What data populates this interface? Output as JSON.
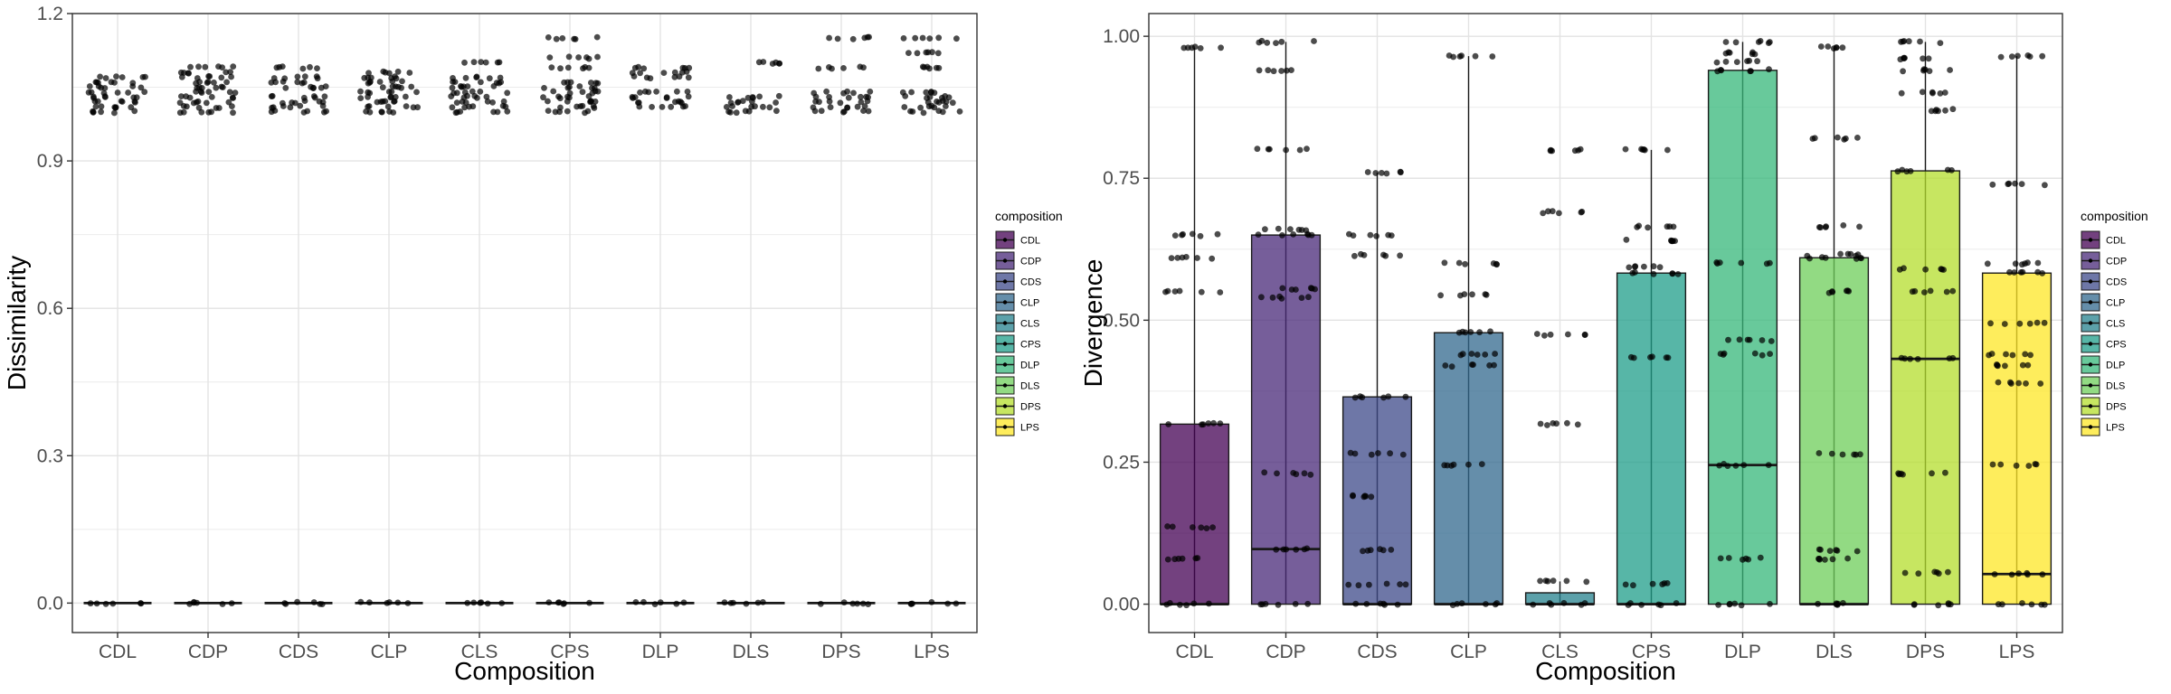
{
  "chart_data": [
    {
      "type": "box",
      "title": "",
      "xlabel": "Composition",
      "ylabel": "Dissimilarity",
      "ylim": [
        -0.06,
        1.2
      ],
      "yticks": [
        0.0,
        0.3,
        0.6,
        0.9,
        1.2
      ],
      "ytick_labels": [
        "0.0",
        "0.3",
        "0.6",
        "0.9",
        "1.2"
      ],
      "grid": true,
      "legend": "right",
      "categories": [
        "CDL",
        "CDP",
        "CDS",
        "CLP",
        "CLS",
        "CPS",
        "DLP",
        "DLS",
        "DPS",
        "LPS"
      ],
      "boxes": [
        {
          "q1": 0,
          "median": 0,
          "q3": 0,
          "whisker_low": 0,
          "whisker_high": 0
        },
        {
          "q1": 0,
          "median": 0,
          "q3": 0,
          "whisker_low": 0,
          "whisker_high": 0
        },
        {
          "q1": 0,
          "median": 0,
          "q3": 0,
          "whisker_low": 0,
          "whisker_high": 0
        },
        {
          "q1": 0,
          "median": 0,
          "q3": 0,
          "whisker_low": 0,
          "whisker_high": 0
        },
        {
          "q1": 0,
          "median": 0,
          "q3": 0,
          "whisker_low": 0,
          "whisker_high": 0
        },
        {
          "q1": 0,
          "median": 0,
          "q3": 0,
          "whisker_low": 0,
          "whisker_high": 0
        },
        {
          "q1": 0,
          "median": 0,
          "q3": 0,
          "whisker_low": 0,
          "whisker_high": 0
        },
        {
          "q1": 0,
          "median": 0,
          "q3": 0,
          "whisker_low": 0,
          "whisker_high": 0
        },
        {
          "q1": 0,
          "median": 0,
          "q3": 0,
          "whisker_low": 0,
          "whisker_high": 0
        },
        {
          "q1": 0,
          "median": 0,
          "q3": 0,
          "whisker_low": 0,
          "whisker_high": 0
        }
      ],
      "points": [
        [
          1.0,
          1.01,
          1.02,
          1.03,
          1.04,
          1.05,
          1.06,
          1.07,
          0.0
        ],
        [
          1.0,
          1.01,
          1.02,
          1.03,
          1.04,
          1.05,
          1.06,
          1.07,
          1.08,
          1.09,
          0.0
        ],
        [
          1.0,
          1.01,
          1.02,
          1.03,
          1.05,
          1.06,
          1.07,
          1.09,
          0.0
        ],
        [
          1.0,
          1.01,
          1.02,
          1.03,
          1.04,
          1.05,
          1.06,
          1.07,
          1.08,
          0.0
        ],
        [
          1.0,
          1.01,
          1.02,
          1.03,
          1.04,
          1.05,
          1.06,
          1.07,
          1.1,
          0.0
        ],
        [
          1.0,
          1.01,
          1.02,
          1.03,
          1.04,
          1.05,
          1.06,
          1.09,
          1.11,
          1.15,
          0.0
        ],
        [
          1.01,
          1.02,
          1.03,
          1.04,
          1.07,
          1.08,
          1.09,
          0.0
        ],
        [
          1.0,
          1.01,
          1.02,
          1.03,
          1.1,
          0.0
        ],
        [
          1.0,
          1.01,
          1.02,
          1.03,
          1.04,
          1.09,
          1.15,
          0.0
        ],
        [
          1.0,
          1.01,
          1.02,
          1.03,
          1.04,
          1.09,
          1.12,
          1.15,
          0.0
        ]
      ],
      "legend_title": "composition",
      "legend_labels": [
        "CDL",
        "CDP",
        "CDS",
        "CLP",
        "CLS",
        "CPS",
        "DLP",
        "DLS",
        "DPS",
        "LPS"
      ]
    },
    {
      "type": "box",
      "title": "",
      "xlabel": "Composition",
      "ylabel": "Divergence",
      "ylim": [
        -0.05,
        1.04
      ],
      "yticks": [
        0.0,
        0.25,
        0.5,
        0.75,
        1.0
      ],
      "ytick_labels": [
        "0.00",
        "0.25",
        "0.50",
        "0.75",
        "1.00"
      ],
      "grid": true,
      "legend": "right",
      "categories": [
        "CDL",
        "CDP",
        "CDS",
        "CLP",
        "CLS",
        "CPS",
        "DLP",
        "DLS",
        "DPS",
        "LPS"
      ],
      "boxes": [
        {
          "q1": 0,
          "median": 0,
          "q3": 0.317,
          "whisker_low": 0,
          "whisker_high": 0.98
        },
        {
          "q1": 0,
          "median": 0.097,
          "q3": 0.65,
          "whisker_low": 0,
          "whisker_high": 0.99
        },
        {
          "q1": 0,
          "median": 0,
          "q3": 0.365,
          "whisker_low": 0,
          "whisker_high": 0.76
        },
        {
          "q1": 0,
          "median": 0,
          "q3": 0.478,
          "whisker_low": 0,
          "whisker_high": 0.965
        },
        {
          "q1": 0,
          "median": 0,
          "q3": 0.02,
          "whisker_low": 0,
          "whisker_high": 0.04
        },
        {
          "q1": 0,
          "median": 0,
          "q3": 0.583,
          "whisker_low": 0,
          "whisker_high": 0.8
        },
        {
          "q1": 0,
          "median": 0.245,
          "q3": 0.94,
          "whisker_low": 0,
          "whisker_high": 0.99
        },
        {
          "q1": 0,
          "median": 0,
          "q3": 0.61,
          "whisker_low": 0,
          "whisker_high": 0.98
        },
        {
          "q1": 0,
          "median": 0.432,
          "q3": 0.763,
          "whisker_low": 0,
          "whisker_high": 0.99
        },
        {
          "q1": 0,
          "median": 0.053,
          "q3": 0.583,
          "whisker_low": 0,
          "whisker_high": 0.965
        }
      ],
      "points": [
        [
          0.98,
          0.65,
          0.61,
          0.55,
          0.317,
          0.135,
          0.08,
          0.0
        ],
        [
          0.99,
          0.94,
          0.8,
          0.66,
          0.65,
          0.555,
          0.54,
          0.23,
          0.097,
          0.0
        ],
        [
          0.76,
          0.65,
          0.615,
          0.365,
          0.265,
          0.19,
          0.095,
          0.035,
          0.0
        ],
        [
          0.965,
          0.6,
          0.545,
          0.48,
          0.44,
          0.42,
          0.245,
          0.0
        ],
        [
          0.8,
          0.69,
          0.475,
          0.317,
          0.04,
          0.0
        ],
        [
          0.8,
          0.665,
          0.64,
          0.595,
          0.583,
          0.435,
          0.035,
          0.0
        ],
        [
          0.99,
          0.97,
          0.955,
          0.94,
          0.6,
          0.465,
          0.44,
          0.245,
          0.08,
          0.0
        ],
        [
          0.98,
          0.82,
          0.665,
          0.615,
          0.61,
          0.55,
          0.265,
          0.095,
          0.08,
          0.0
        ],
        [
          0.99,
          0.96,
          0.94,
          0.9,
          0.87,
          0.763,
          0.59,
          0.55,
          0.432,
          0.23,
          0.055,
          0.0
        ],
        [
          0.965,
          0.74,
          0.6,
          0.583,
          0.495,
          0.44,
          0.42,
          0.39,
          0.245,
          0.053,
          0.0
        ]
      ],
      "legend_title": "composition",
      "legend_labels": [
        "CDL",
        "CDP",
        "CDS",
        "CLP",
        "CLS",
        "CPS",
        "DLP",
        "DLS",
        "DPS",
        "LPS"
      ]
    }
  ],
  "colors": {
    "CDL": "#440154",
    "CDP": "#482878",
    "CDS": "#3E4A89",
    "CLP": "#31688E",
    "CLS": "#26828E",
    "CPS": "#1F9E89",
    "DLP": "#35B779",
    "DLS": "#6DCD59",
    "DPS": "#B4DE2C",
    "LPS": "#FDE725"
  }
}
